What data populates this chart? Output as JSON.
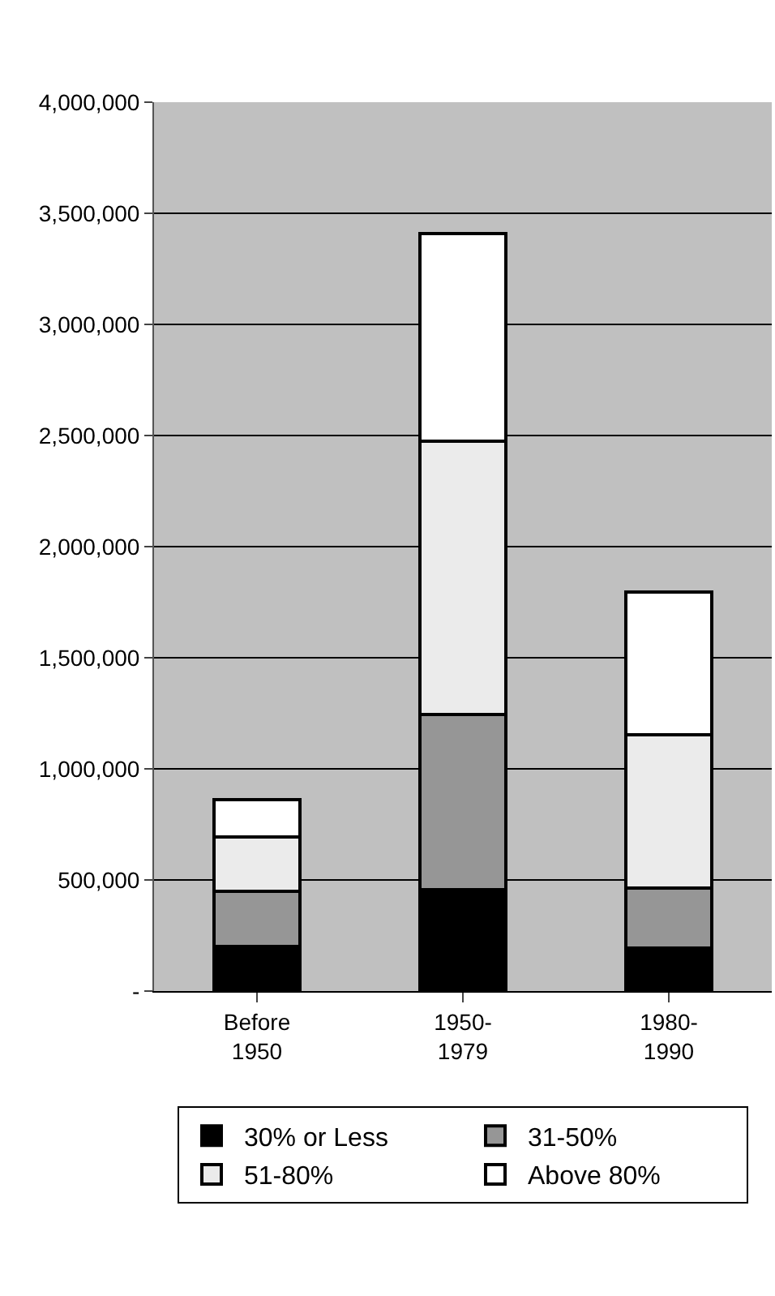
{
  "chart_data": {
    "type": "bar",
    "stacked": true,
    "categories": [
      "Before\n1950",
      "1950-\n1979",
      "1980-\n1990"
    ],
    "series": [
      {
        "name": "30% or Less",
        "color": "#000000",
        "values": [
          200000,
          455000,
          195000
        ]
      },
      {
        "name": "31-50%",
        "color": "#969696",
        "values": [
          250000,
          790000,
          270000
        ]
      },
      {
        "name": "51-80%",
        "color": "#ebebeb",
        "values": [
          245000,
          1230000,
          690000
        ]
      },
      {
        "name": "Above 80%",
        "color": "#ffffff",
        "values": [
          165000,
          935000,
          640000
        ]
      }
    ],
    "ylim": [
      0,
      4000000
    ],
    "yticks": [
      {
        "value": 0,
        "label": "-"
      },
      {
        "value": 500000,
        "label": "500,000"
      },
      {
        "value": 1000000,
        "label": "1,000,000"
      },
      {
        "value": 1500000,
        "label": "1,500,000"
      },
      {
        "value": 2000000,
        "label": "2,000,000"
      },
      {
        "value": 2500000,
        "label": "2,500,000"
      },
      {
        "value": 3000000,
        "label": "3,000,000"
      },
      {
        "value": 3500000,
        "label": "3,500,000"
      },
      {
        "value": 4000000,
        "label": "4,000,000"
      }
    ],
    "grid": "y",
    "legend": "bottom"
  }
}
